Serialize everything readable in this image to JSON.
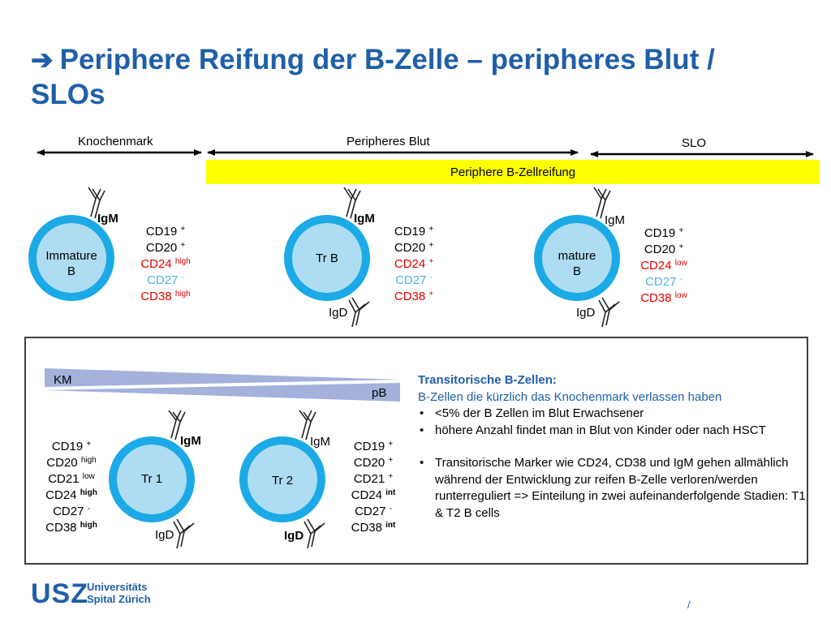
{
  "title": {
    "arrow_icon": "right-arrow-icon",
    "line1": "Periphere Reifung der B-Zelle – peripheres Blut /",
    "line2": "SLOs"
  },
  "regions": {
    "bone_marrow": "Knochenmark",
    "peripheral_blood": "Peripheres Blut",
    "slo": "SLO",
    "banner": "Periphere B-Zellreifung"
  },
  "top_cells": [
    {
      "name_line1": "Immature",
      "name_line2": "B",
      "igm": "IgM",
      "igd": "",
      "markers": [
        {
          "base": "CD19",
          "sup": "+",
          "style": "black"
        },
        {
          "base": "CD20",
          "sup": "+",
          "style": "black"
        },
        {
          "base": "CD24",
          "sup": "high",
          "style": "red"
        },
        {
          "base": "CD27",
          "sup": "-",
          "style": "lightblue"
        },
        {
          "base": "CD38",
          "sup": "high",
          "style": "red"
        }
      ]
    },
    {
      "name_line1": "Tr B",
      "name_line2": "",
      "igm": "IgM",
      "igd": "IgD",
      "markers": [
        {
          "base": "CD19",
          "sup": "+",
          "style": "black"
        },
        {
          "base": "CD20",
          "sup": "+",
          "style": "black"
        },
        {
          "base": "CD24",
          "sup": "+",
          "style": "red"
        },
        {
          "base": "CD27",
          "sup": "-",
          "style": "lightblue"
        },
        {
          "base": "CD38",
          "sup": "+",
          "style": "red"
        }
      ]
    },
    {
      "name_line1": "mature",
      "name_line2": "B",
      "igm": "IgM",
      "igd": "IgD",
      "markers": [
        {
          "base": "CD19",
          "sup": "+",
          "style": "black"
        },
        {
          "base": "CD20",
          "sup": "+",
          "style": "black"
        },
        {
          "base": "CD24",
          "sup": "low",
          "style": "red"
        },
        {
          "base": "CD27",
          "sup": "-",
          "style": "lightblue"
        },
        {
          "base": "CD38",
          "sup": "low",
          "style": "red"
        }
      ]
    }
  ],
  "gradient": {
    "left_label": "KM",
    "right_label": "pB"
  },
  "bottom_cells": [
    {
      "name": "Tr 1",
      "igm": "IgM",
      "igd": "IgD",
      "markers": [
        {
          "base": "CD19",
          "sup": "+",
          "sup_bold": false
        },
        {
          "base": "CD20",
          "sup": "high",
          "sup_bold": false
        },
        {
          "base": "CD21",
          "sup": "low",
          "sup_bold": false
        },
        {
          "base": "CD24",
          "sup": "high",
          "sup_bold": true
        },
        {
          "base": "CD27",
          "sup": "-",
          "sup_bold": false
        },
        {
          "base": "CD38",
          "sup": "high",
          "sup_bold": true
        }
      ]
    },
    {
      "name": "Tr 2",
      "igm": "IgM",
      "igd": "IgD",
      "markers": [
        {
          "base": "CD19",
          "sup": "+",
          "sup_bold": false
        },
        {
          "base": "CD20",
          "sup": "+",
          "sup_bold": false
        },
        {
          "base": "CD21",
          "sup": "+",
          "sup_bold": false
        },
        {
          "base": "CD24",
          "sup": "int",
          "sup_bold": true
        },
        {
          "base": "CD27",
          "sup": "-",
          "sup_bold": false
        },
        {
          "base": "CD38",
          "sup": "int",
          "sup_bold": true
        }
      ]
    }
  ],
  "notes": {
    "heading": "Transitorische B-Zellen:",
    "subheading": "B-Zellen die kürzlich das Knochenmark verlassen haben",
    "bullets": [
      "<5% der B Zellen im Blut Erwachsener",
      "höhere Anzahl findet man in Blut von Kinder oder nach HSCT",
      "Transitorische Marker wie CD24, CD38 und IgM gehen allmählich während der Entwicklung zur reifen B-Zelle verloren/werden runterreguliert => Einteilung in zwei aufeinanderfolgende Stadien: T1 & T2 B cells"
    ]
  },
  "footer": {
    "logo_main": "USZ",
    "logo_line1": "Universitäts",
    "logo_line2": "Spital Zürich",
    "page_mark": "/"
  },
  "colors": {
    "title_blue": "#1F5FA7",
    "cell_outer": "#1BAAE6",
    "cell_inner": "#AEDCF2",
    "banner_yellow": "#FFFF00",
    "marker_red": "#E60000",
    "marker_lightblue": "#4DB4E6",
    "gradient": "#A3B1DB"
  }
}
